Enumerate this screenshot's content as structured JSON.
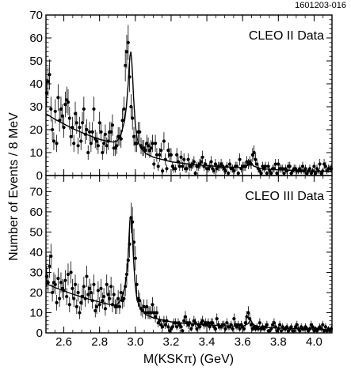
{
  "figure_id": "1601203-016",
  "chart_data": [
    {
      "type": "scatter",
      "panel": "top",
      "title": "CLEO II Data",
      "xlabel": "M(KSKπ) (GeV)",
      "ylabel": "Number of Events / 8 MeV",
      "xlim": [
        2.5,
        4.1
      ],
      "ylim": [
        0,
        70
      ],
      "yticks": [
        0,
        10,
        20,
        30,
        40,
        50,
        60,
        70
      ],
      "xticks": [
        2.6,
        2.8,
        3.0,
        3.2,
        3.4,
        3.6,
        3.8,
        4.0
      ],
      "has_error_bars": true,
      "points_x": [
        2.504,
        2.512,
        2.52,
        2.528,
        2.536,
        2.544,
        2.552,
        2.56,
        2.568,
        2.576,
        2.584,
        2.592,
        2.6,
        2.608,
        2.616,
        2.624,
        2.632,
        2.64,
        2.648,
        2.656,
        2.664,
        2.672,
        2.68,
        2.688,
        2.696,
        2.704,
        2.712,
        2.72,
        2.728,
        2.736,
        2.744,
        2.752,
        2.76,
        2.768,
        2.776,
        2.784,
        2.792,
        2.8,
        2.808,
        2.816,
        2.824,
        2.832,
        2.84,
        2.848,
        2.856,
        2.864,
        2.872,
        2.88,
        2.888,
        2.896,
        2.904,
        2.912,
        2.92,
        2.928,
        2.936,
        2.944,
        2.952,
        2.96,
        2.968,
        2.976,
        2.984,
        2.992,
        3.0,
        3.008,
        3.016,
        3.024,
        3.032,
        3.04,
        3.048,
        3.056,
        3.064,
        3.072,
        3.08,
        3.088,
        3.096,
        3.104,
        3.112,
        3.12,
        3.128,
        3.136,
        3.144,
        3.152,
        3.16,
        3.168,
        3.176,
        3.184,
        3.192,
        3.2,
        3.208,
        3.216,
        3.224,
        3.232,
        3.24,
        3.248,
        3.256,
        3.264,
        3.272,
        3.28,
        3.288,
        3.296,
        3.304,
        3.312,
        3.32,
        3.328,
        3.336,
        3.344,
        3.352,
        3.36,
        3.368,
        3.376,
        3.384,
        3.392,
        3.4,
        3.408,
        3.416,
        3.424,
        3.432,
        3.44,
        3.448,
        3.456,
        3.464,
        3.472,
        3.48,
        3.488,
        3.496,
        3.504,
        3.512,
        3.52,
        3.528,
        3.536,
        3.544,
        3.552,
        3.56,
        3.568,
        3.576,
        3.584,
        3.592,
        3.6,
        3.608,
        3.616,
        3.624,
        3.632,
        3.64,
        3.648,
        3.656,
        3.664,
        3.672,
        3.68,
        3.688,
        3.696,
        3.704,
        3.712,
        3.72,
        3.728,
        3.736,
        3.744,
        3.752,
        3.76,
        3.768,
        3.776,
        3.784,
        3.792,
        3.8,
        3.808,
        3.816,
        3.824,
        3.832,
        3.84,
        3.848,
        3.856,
        3.864,
        3.872,
        3.88,
        3.888,
        3.896,
        3.904,
        3.912,
        3.92,
        3.928,
        3.936,
        3.944,
        3.952,
        3.96,
        3.968,
        3.976,
        3.984,
        3.992,
        4.0,
        4.008,
        4.016,
        4.024,
        4.032,
        4.04,
        4.048,
        4.056,
        4.064,
        4.072,
        4.08,
        4.088,
        4.096
      ],
      "points_y": [
        36,
        41,
        44,
        29,
        20,
        15,
        28,
        14,
        34,
        24,
        29,
        26,
        21,
        31,
        33,
        32,
        25,
        17,
        21,
        14,
        27,
        23,
        13,
        21,
        15,
        23,
        29,
        18,
        20,
        10,
        19,
        14,
        19,
        29,
        16,
        15,
        13,
        23,
        19,
        10,
        14,
        18,
        13,
        15,
        19,
        19,
        22,
        12,
        12,
        13,
        17,
        17,
        16,
        24,
        29,
        48,
        54,
        58,
        43,
        30,
        25,
        17,
        14,
        14,
        19,
        19,
        13,
        12,
        12,
        11,
        14,
        13,
        11,
        12,
        14,
        5,
        14,
        9,
        4,
        9,
        11,
        2,
        15,
        7,
        3,
        11,
        9,
        9,
        4,
        3,
        3,
        9,
        6,
        4,
        8,
        4,
        7,
        3,
        3,
        7,
        4,
        4,
        5,
        6,
        1,
        4,
        4,
        5,
        6,
        8,
        4,
        5,
        3,
        3,
        4,
        6,
        3,
        2,
        5,
        3,
        4,
        4,
        5,
        4,
        3,
        2,
        4,
        1,
        5,
        3,
        3,
        2,
        4,
        4,
        1,
        7,
        3,
        4,
        4,
        4,
        6,
        5,
        6,
        5,
        9,
        10,
        7,
        5,
        3,
        2,
        1,
        4,
        3,
        4,
        1,
        4,
        2,
        1,
        3,
        3,
        5,
        1,
        5,
        3,
        3,
        3,
        1,
        3,
        2,
        4,
        4,
        1,
        2,
        3,
        3,
        2,
        2,
        3,
        2,
        4,
        2,
        3,
        1,
        2,
        3,
        1,
        2,
        4,
        1,
        3,
        2,
        5,
        1,
        2,
        5,
        4,
        2,
        3,
        3,
        3,
        1,
        3,
        1,
        2,
        3
      ],
      "fit_curve": {
        "x": [
          2.5,
          2.55,
          2.6,
          2.65,
          2.7,
          2.75,
          2.8,
          2.85,
          2.88,
          2.9,
          2.92,
          2.94,
          2.95,
          2.96,
          2.965,
          2.97,
          2.975,
          2.98,
          2.985,
          2.99,
          3.0,
          3.01,
          3.03,
          3.06,
          3.1,
          3.2,
          3.3,
          3.4,
          3.5,
          3.6,
          3.63,
          3.645,
          3.66,
          3.7,
          3.8,
          3.9,
          4.0,
          4.1
        ],
        "y": [
          27,
          24.5,
          22.5,
          20.5,
          18.8,
          17.2,
          15.8,
          14.8,
          14.6,
          15.2,
          18,
          24,
          30,
          40,
          47,
          52,
          54,
          50,
          43,
          34,
          22,
          16,
          12,
          9.5,
          8,
          6,
          5,
          4.3,
          3.8,
          3.4,
          4.5,
          6.2,
          4.2,
          3,
          2.5,
          2.2,
          2,
          1.8
        ]
      }
    },
    {
      "type": "scatter",
      "panel": "bottom",
      "title": "CLEO III Data",
      "xlabel": "M(KSKπ) (GeV)",
      "ylabel": "Number of Events / 8 MeV",
      "xlim": [
        2.5,
        4.1
      ],
      "ylim": [
        0,
        78
      ],
      "yticks": [
        0,
        10,
        20,
        30,
        40,
        50,
        60,
        70
      ],
      "xticks": [
        2.6,
        2.8,
        3.0,
        3.2,
        3.4,
        3.6,
        3.8,
        4.0
      ],
      "has_error_bars": true,
      "points_x": [
        2.504,
        2.512,
        2.52,
        2.528,
        2.536,
        2.544,
        2.552,
        2.56,
        2.568,
        2.576,
        2.584,
        2.592,
        2.6,
        2.608,
        2.616,
        2.624,
        2.632,
        2.64,
        2.648,
        2.656,
        2.664,
        2.672,
        2.68,
        2.688,
        2.696,
        2.704,
        2.712,
        2.72,
        2.728,
        2.736,
        2.744,
        2.752,
        2.76,
        2.768,
        2.776,
        2.784,
        2.792,
        2.8,
        2.808,
        2.816,
        2.824,
        2.832,
        2.84,
        2.848,
        2.856,
        2.864,
        2.872,
        2.88,
        2.888,
        2.896,
        2.904,
        2.912,
        2.92,
        2.928,
        2.936,
        2.944,
        2.952,
        2.96,
        2.968,
        2.976,
        2.984,
        2.992,
        3.0,
        3.008,
        3.016,
        3.024,
        3.032,
        3.04,
        3.048,
        3.056,
        3.064,
        3.072,
        3.08,
        3.088,
        3.096,
        3.104,
        3.112,
        3.12,
        3.128,
        3.136,
        3.144,
        3.152,
        3.16,
        3.168,
        3.176,
        3.184,
        3.192,
        3.2,
        3.208,
        3.216,
        3.224,
        3.232,
        3.24,
        3.248,
        3.256,
        3.264,
        3.272,
        3.28,
        3.288,
        3.296,
        3.304,
        3.312,
        3.32,
        3.328,
        3.336,
        3.344,
        3.352,
        3.36,
        3.368,
        3.376,
        3.384,
        3.392,
        3.4,
        3.408,
        3.416,
        3.424,
        3.432,
        3.44,
        3.448,
        3.456,
        3.464,
        3.472,
        3.48,
        3.488,
        3.496,
        3.504,
        3.512,
        3.52,
        3.528,
        3.536,
        3.544,
        3.552,
        3.56,
        3.568,
        3.576,
        3.584,
        3.592,
        3.6,
        3.608,
        3.616,
        3.624,
        3.632,
        3.64,
        3.648,
        3.656,
        3.664,
        3.672,
        3.68,
        3.688,
        3.696,
        3.704,
        3.712,
        3.72,
        3.728,
        3.736,
        3.744,
        3.752,
        3.76,
        3.768,
        3.776,
        3.784,
        3.792,
        3.8,
        3.808,
        3.816,
        3.824,
        3.832,
        3.84,
        3.848,
        3.856,
        3.864,
        3.872,
        3.88,
        3.888,
        3.896,
        3.904,
        3.912,
        3.92,
        3.928,
        3.936,
        3.944,
        3.952,
        3.96,
        3.968,
        3.976,
        3.984,
        3.992,
        4.0,
        4.008,
        4.016,
        4.024,
        4.032,
        4.04,
        4.048,
        4.056,
        4.064,
        4.072,
        4.08,
        4.088,
        4.096
      ],
      "points_y": [
        28,
        25,
        33,
        38,
        20,
        25,
        24,
        15,
        27,
        17,
        25,
        22,
        21,
        26,
        18,
        29,
        14,
        30,
        22,
        17,
        24,
        13,
        20,
        10,
        15,
        18,
        23,
        17,
        28,
        19,
        22,
        20,
        16,
        24,
        11,
        13,
        21,
        14,
        22,
        16,
        18,
        12,
        24,
        19,
        17,
        23,
        14,
        19,
        13,
        13,
        17,
        13,
        20,
        16,
        17,
        23,
        29,
        36,
        44,
        57,
        55,
        45,
        37,
        24,
        17,
        16,
        12,
        11,
        13,
        10,
        13,
        10,
        10,
        10,
        14,
        10,
        8,
        10,
        5,
        6,
        4,
        3,
        6,
        4,
        6,
        3,
        1,
        2,
        3,
        5,
        5,
        3,
        5,
        4,
        3,
        1,
        6,
        8,
        5,
        4,
        5,
        2,
        4,
        6,
        5,
        2,
        4,
        3,
        5,
        6,
        4,
        5,
        4,
        5,
        3,
        5,
        5,
        3,
        2,
        7,
        4,
        3,
        3,
        4,
        4,
        2,
        5,
        3,
        3,
        4,
        2,
        7,
        4,
        3,
        4,
        2,
        4,
        3,
        2,
        5,
        8,
        10,
        7,
        4,
        2,
        3,
        2,
        3,
        2,
        5,
        2,
        3,
        2,
        3,
        4,
        1,
        1,
        2,
        4,
        5,
        3,
        1,
        2,
        4,
        1,
        3,
        2,
        2,
        3,
        1,
        2,
        3,
        1,
        1,
        3,
        4,
        2,
        1,
        3,
        2,
        2,
        3,
        2,
        1,
        2,
        4,
        3,
        1,
        2,
        1,
        2,
        3,
        2,
        4,
        1,
        3,
        1,
        2,
        1,
        2,
        1
      ],
      "fit_curve": {
        "x": [
          2.5,
          2.55,
          2.6,
          2.65,
          2.7,
          2.75,
          2.8,
          2.85,
          2.88,
          2.9,
          2.92,
          2.94,
          2.95,
          2.96,
          2.965,
          2.97,
          2.975,
          2.98,
          2.985,
          2.99,
          3.0,
          3.01,
          3.03,
          3.06,
          3.1,
          3.2,
          3.3,
          3.4,
          3.5,
          3.6,
          3.63,
          3.645,
          3.66,
          3.7,
          3.8,
          3.9,
          4.0,
          4.1
        ],
        "y": [
          24.5,
          22.5,
          20.8,
          19.2,
          17.8,
          16.5,
          15.3,
          14.2,
          13.8,
          14.2,
          16.5,
          22,
          28,
          38,
          48,
          56,
          58,
          54,
          46,
          36,
          23,
          16,
          12,
          9,
          7.5,
          5.5,
          4.5,
          4,
          3.5,
          3.2,
          4.5,
          6.5,
          4,
          2.9,
          2.4,
          2.1,
          1.9,
          1.7
        ]
      }
    }
  ]
}
